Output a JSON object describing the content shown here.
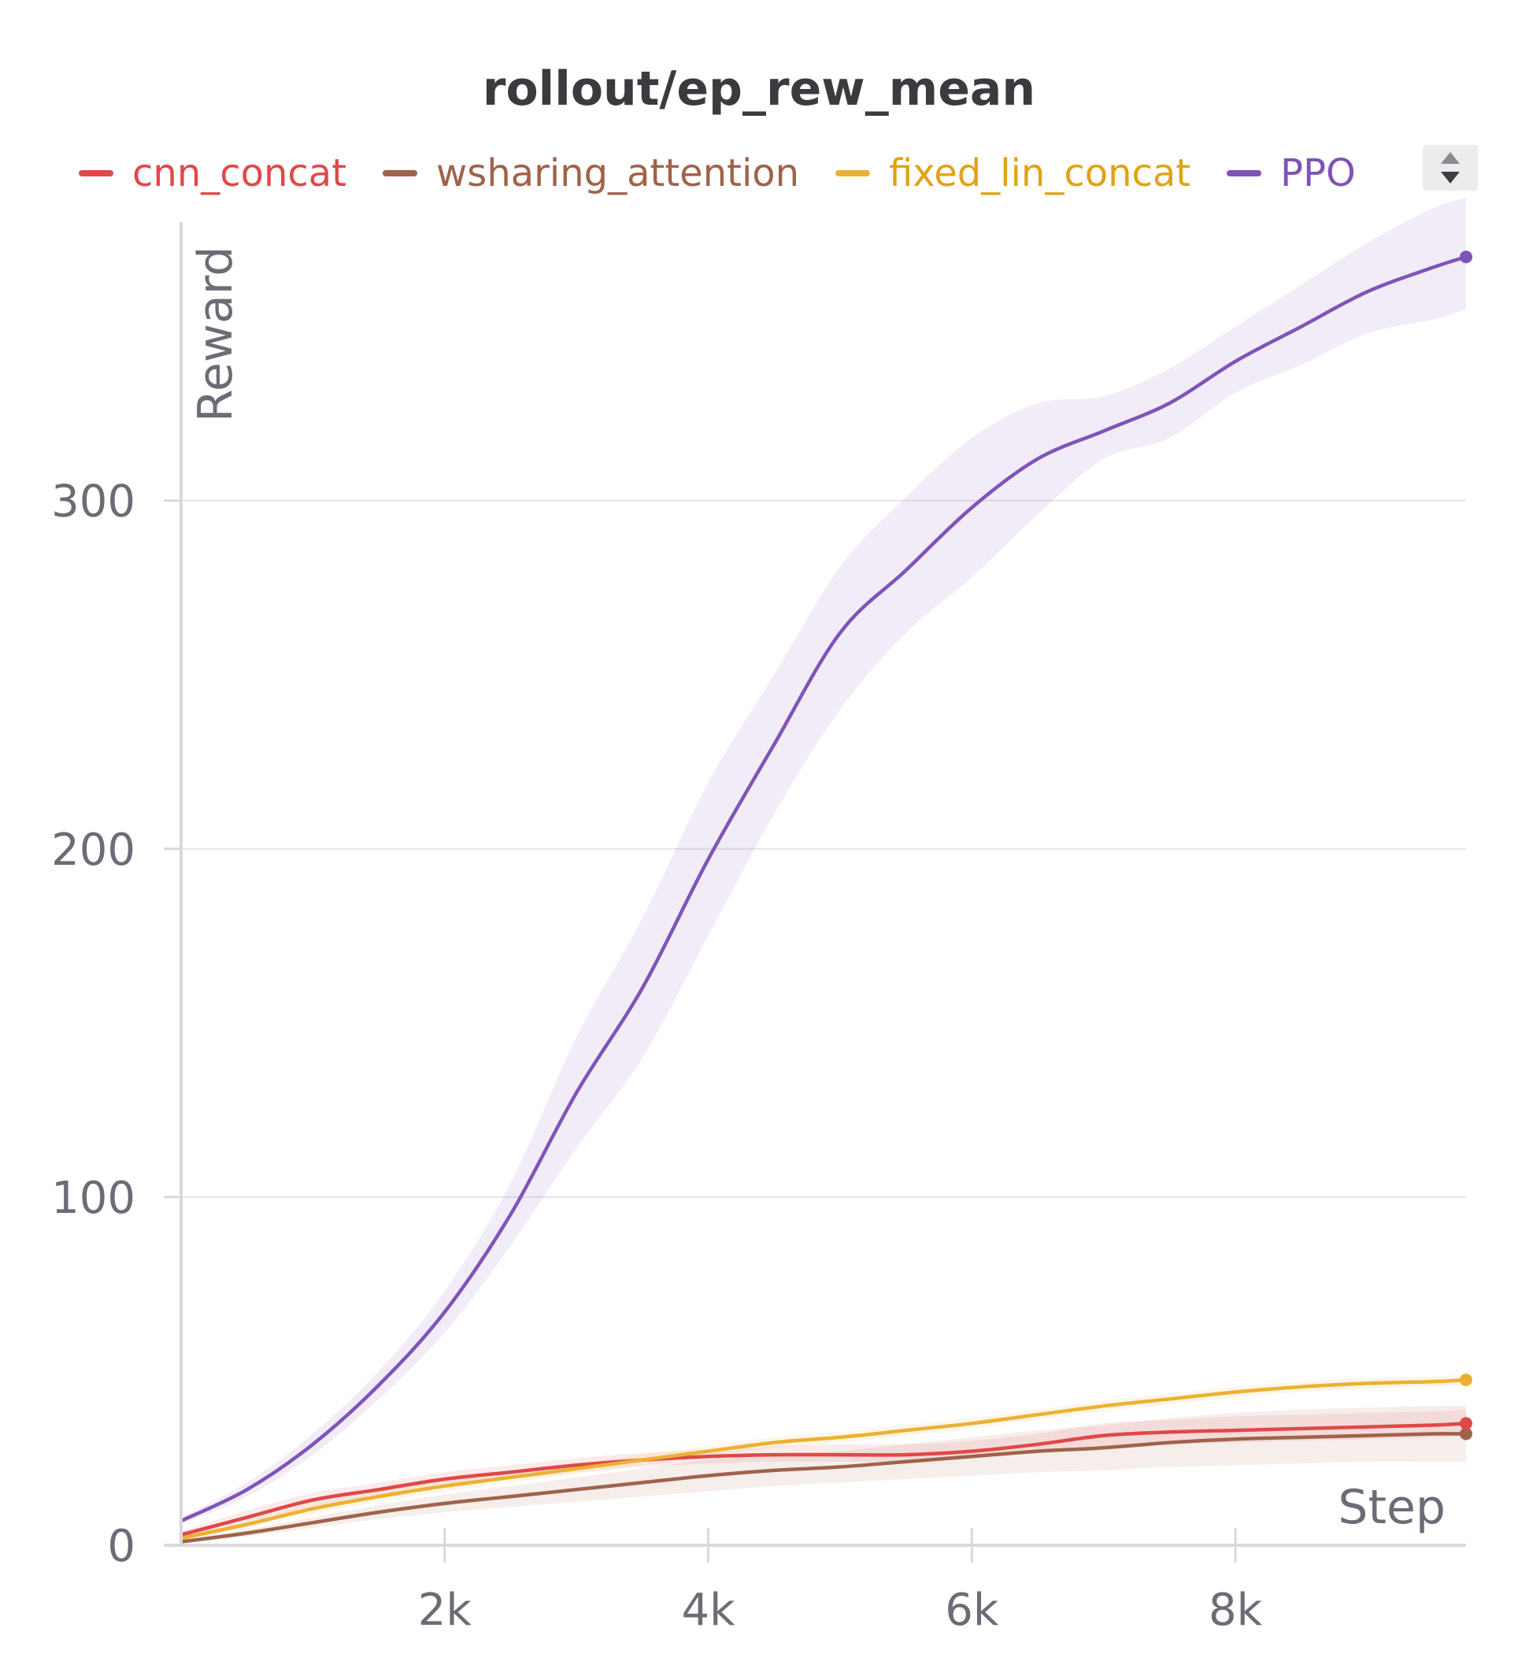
{
  "chart_data": {
    "type": "line",
    "title": "rollout/ep_rew_mean",
    "xlabel": "Step",
    "ylabel": "Reward",
    "xlim": [
      0,
      9750
    ],
    "ylim": [
      0,
      380
    ],
    "x_ticks": [
      2000,
      4000,
      6000,
      8000
    ],
    "x_tick_labels": [
      "2k",
      "4k",
      "6k",
      "8k"
    ],
    "y_ticks": [
      0,
      100,
      200,
      300
    ],
    "y_tick_labels": [
      "0",
      "100",
      "200",
      "300"
    ],
    "grid": true,
    "legend_position": "top",
    "x": [
      0,
      500,
      1000,
      1500,
      2000,
      2500,
      3000,
      3500,
      4000,
      4500,
      5000,
      5500,
      6000,
      6500,
      7000,
      7500,
      8000,
      8500,
      9000,
      9500,
      9750
    ],
    "series": [
      {
        "name": "cnn_concat",
        "color": "#e04848",
        "values": [
          3,
          8,
          13,
          16,
          19,
          21,
          23,
          24.5,
          25.5,
          26,
          26,
          26,
          27,
          29,
          31.5,
          32.5,
          33,
          33.5,
          34,
          34.5,
          35
        ],
        "lower": [
          2,
          6,
          11,
          14,
          17,
          19,
          21,
          22.5,
          23.5,
          24,
          24,
          24,
          25,
          26.5,
          28,
          29,
          29.5,
          30,
          30.5,
          31,
          31.5
        ],
        "upper": [
          4,
          10,
          15,
          18,
          21,
          23,
          25,
          26.5,
          27.5,
          28.5,
          29,
          29,
          30,
          32,
          35,
          36,
          37,
          37.5,
          38,
          38.5,
          39
        ]
      },
      {
        "name": "wsharing_attention",
        "color": "#a0624a",
        "values": [
          1,
          3.5,
          6.5,
          9.5,
          12,
          14,
          16,
          18,
          20,
          21.5,
          22.5,
          24,
          25.5,
          27,
          28,
          29.5,
          30.5,
          31,
          31.5,
          32,
          32
        ],
        "lower": [
          0.5,
          2.5,
          5,
          7.5,
          9.5,
          11,
          12.5,
          14,
          15.5,
          17,
          18,
          19,
          20,
          21,
          21.5,
          22.5,
          23,
          23.5,
          24,
          24,
          24
        ],
        "upper": [
          1.5,
          4.5,
          8,
          11.5,
          14.5,
          17,
          19.5,
          22,
          24.5,
          26,
          27,
          29,
          31,
          33,
          34.5,
          36.5,
          38,
          39,
          39.5,
          40,
          40
        ]
      },
      {
        "name": "fixed_lin_concat",
        "color": "#ecb132",
        "values": [
          2,
          6,
          10.5,
          14,
          17,
          19.5,
          22,
          24.5,
          27,
          29.5,
          31,
          33,
          35,
          37.5,
          40,
          42,
          44,
          45.5,
          46.5,
          47,
          47.5
        ],
        "lower": [
          1.5,
          5,
          9,
          12.5,
          15.5,
          18,
          20.5,
          23,
          25.5,
          28,
          29.5,
          31.5,
          33.5,
          36,
          38.5,
          40.5,
          42.5,
          44,
          45,
          45.5,
          46
        ],
        "upper": [
          2.5,
          7,
          12,
          15.5,
          18.5,
          21,
          23.5,
          26,
          28.5,
          31,
          32.5,
          34.5,
          36.5,
          39,
          41.5,
          43.5,
          45.5,
          47,
          48,
          48.5,
          49
        ]
      },
      {
        "name": "PPO",
        "color": "#7e54b8",
        "values": [
          7,
          16,
          29,
          46,
          67,
          95,
          130,
          160,
          197,
          230,
          262,
          280,
          298,
          312,
          320,
          328,
          340,
          350,
          360,
          367,
          370
        ],
        "lower": [
          6,
          14,
          26,
          42,
          61,
          86,
          114,
          140,
          175,
          210,
          240,
          262,
          278,
          296,
          312,
          318,
          331,
          339,
          348,
          352,
          355
        ],
        "upper": [
          8,
          18,
          32,
          50,
          73,
          104,
          146,
          180,
          219,
          250,
          281,
          301,
          318,
          328,
          330,
          338,
          350,
          362,
          374,
          384,
          387
        ]
      }
    ]
  },
  "legend_scroll_icon": "up-down-caret-icon"
}
